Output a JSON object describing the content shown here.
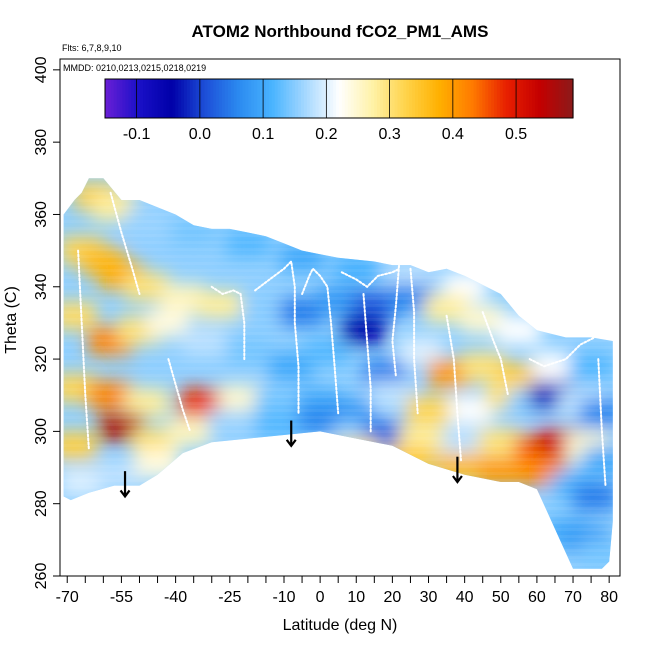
{
  "chart_data": {
    "type": "heatmap",
    "title": "ATOM2 Northbound fCO2_PM1_AMS",
    "subtitle_flights": "Flts: 6,7,8,9,10",
    "subtitle_dates": "MMDD: 0210,0213,0215,0218,0219",
    "xlabel": "Latitude (deg N)",
    "ylabel": "Theta (C)",
    "xlim": [
      -72,
      83
    ],
    "ylim": [
      260,
      403
    ],
    "x_ticks_labeled": [
      -70,
      -55,
      -40,
      -25,
      -10,
      0,
      10,
      20,
      30,
      40,
      50,
      60,
      70,
      80
    ],
    "x_ticks_minor": [
      -65,
      -60,
      -50,
      -45,
      -35,
      -30,
      -20,
      -15,
      -5,
      5,
      15,
      25,
      35,
      45,
      55,
      65,
      75
    ],
    "y_ticks": [
      260,
      280,
      300,
      320,
      340,
      360,
      380,
      400
    ],
    "colorbar": {
      "range": [
        -0.15,
        0.59
      ],
      "ticks": [
        -0.1,
        0.0,
        0.1,
        0.2,
        0.3,
        0.4,
        0.5
      ],
      "tick_labels": [
        "-0.1",
        "0.0",
        "0.1",
        "0.2",
        "0.3",
        "0.4",
        "0.5"
      ],
      "colors": [
        "#6a1fd6",
        "#1a10c8",
        "#0000a8",
        "#1d4fd8",
        "#2b8af0",
        "#49b4ff",
        "#a6d8ff",
        "#ffffff",
        "#fff2a8",
        "#ffd34a",
        "#ffb000",
        "#ff7a00",
        "#e82000",
        "#c40000",
        "#8c1a1a"
      ]
    },
    "domain_outline": [
      [
        -71,
        282
      ],
      [
        -69,
        281
      ],
      [
        -64,
        283
      ],
      [
        -57,
        285
      ],
      [
        -50,
        285
      ],
      [
        -45,
        288
      ],
      [
        -38,
        294
      ],
      [
        -30,
        297
      ],
      [
        -20,
        298
      ],
      [
        -10,
        299
      ],
      [
        0,
        300
      ],
      [
        10,
        298
      ],
      [
        20,
        296
      ],
      [
        30,
        291
      ],
      [
        40,
        288
      ],
      [
        50,
        286
      ],
      [
        55,
        286
      ],
      [
        60,
        284
      ],
      [
        65,
        273
      ],
      [
        70,
        262
      ],
      [
        72,
        262
      ],
      [
        78,
        262
      ],
      [
        80,
        264
      ],
      [
        81,
        275
      ],
      [
        81,
        325
      ],
      [
        75,
        326
      ],
      [
        68,
        326
      ],
      [
        60,
        328
      ],
      [
        55,
        332
      ],
      [
        50,
        338
      ],
      [
        40,
        343
      ],
      [
        35,
        345
      ],
      [
        30,
        344
      ],
      [
        25,
        346
      ],
      [
        20,
        346
      ],
      [
        15,
        347
      ],
      [
        5,
        348
      ],
      [
        0,
        349
      ],
      [
        -5,
        350
      ],
      [
        -10,
        352
      ],
      [
        -15,
        354
      ],
      [
        -20,
        355
      ],
      [
        -25,
        356
      ],
      [
        -30,
        356
      ],
      [
        -35,
        357
      ],
      [
        -40,
        360
      ],
      [
        -45,
        362
      ],
      [
        -50,
        364
      ],
      [
        -55,
        364
      ],
      [
        -60,
        370
      ],
      [
        -64,
        370
      ],
      [
        -66,
        366
      ],
      [
        -68,
        364
      ],
      [
        -71,
        360
      ]
    ],
    "cells": [
      {
        "lat": -62,
        "theta": 365,
        "value": 0.33
      },
      {
        "lat": -57,
        "theta": 362,
        "value": 0.28
      },
      {
        "lat": -48,
        "theta": 358,
        "value": 0.16
      },
      {
        "lat": -35,
        "theta": 355,
        "value": 0.14
      },
      {
        "lat": -20,
        "theta": 352,
        "value": 0.12
      },
      {
        "lat": -5,
        "theta": 348,
        "value": 0.1
      },
      {
        "lat": 10,
        "theta": 345,
        "value": 0.11
      },
      {
        "lat": 25,
        "theta": 343,
        "value": 0.18
      },
      {
        "lat": 40,
        "theta": 340,
        "value": 0.22
      },
      {
        "lat": -66,
        "theta": 350,
        "value": 0.32
      },
      {
        "lat": -60,
        "theta": 347,
        "value": 0.36
      },
      {
        "lat": -55,
        "theta": 343,
        "value": 0.38
      },
      {
        "lat": -48,
        "theta": 340,
        "value": 0.3
      },
      {
        "lat": -38,
        "theta": 337,
        "value": 0.26
      },
      {
        "lat": -28,
        "theta": 335,
        "value": 0.28
      },
      {
        "lat": -15,
        "theta": 333,
        "value": 0.15
      },
      {
        "lat": -5,
        "theta": 333,
        "value": 0.05
      },
      {
        "lat": 5,
        "theta": 336,
        "value": 0.08
      },
      {
        "lat": 15,
        "theta": 335,
        "value": 0.02
      },
      {
        "lat": 25,
        "theta": 337,
        "value": 0.06
      },
      {
        "lat": 35,
        "theta": 334,
        "value": 0.28
      },
      {
        "lat": 45,
        "theta": 331,
        "value": 0.25
      },
      {
        "lat": 55,
        "theta": 328,
        "value": 0.22
      },
      {
        "lat": -68,
        "theta": 332,
        "value": 0.31
      },
      {
        "lat": -58,
        "theta": 325,
        "value": 0.42
      },
      {
        "lat": -50,
        "theta": 328,
        "value": 0.3
      },
      {
        "lat": -42,
        "theta": 330,
        "value": 0.24
      },
      {
        "lat": -32,
        "theta": 325,
        "value": 0.18
      },
      {
        "lat": -20,
        "theta": 322,
        "value": 0.14
      },
      {
        "lat": -8,
        "theta": 318,
        "value": 0.1
      },
      {
        "lat": 2,
        "theta": 322,
        "value": 0.12
      },
      {
        "lat": 12,
        "theta": 328,
        "value": -0.05
      },
      {
        "lat": 18,
        "theta": 316,
        "value": 0.05
      },
      {
        "lat": 28,
        "theta": 322,
        "value": 0.2
      },
      {
        "lat": 36,
        "theta": 316,
        "value": 0.4
      },
      {
        "lat": 45,
        "theta": 318,
        "value": 0.3
      },
      {
        "lat": 55,
        "theta": 315,
        "value": 0.34
      },
      {
        "lat": 65,
        "theta": 318,
        "value": 0.22
      },
      {
        "lat": 75,
        "theta": 318,
        "value": 0.12
      },
      {
        "lat": -68,
        "theta": 312,
        "value": 0.32
      },
      {
        "lat": -58,
        "theta": 310,
        "value": 0.42
      },
      {
        "lat": -48,
        "theta": 308,
        "value": 0.28
      },
      {
        "lat": -33,
        "theta": 308,
        "value": 0.47
      },
      {
        "lat": -22,
        "theta": 309,
        "value": 0.25
      },
      {
        "lat": -12,
        "theta": 308,
        "value": 0.14
      },
      {
        "lat": 0,
        "theta": 308,
        "value": 0.1
      },
      {
        "lat": 10,
        "theta": 305,
        "value": 0.08
      },
      {
        "lat": 20,
        "theta": 310,
        "value": 0.18
      },
      {
        "lat": 30,
        "theta": 306,
        "value": 0.32
      },
      {
        "lat": 42,
        "theta": 306,
        "value": 0.22
      },
      {
        "lat": 52,
        "theta": 310,
        "value": 0.3
      },
      {
        "lat": 58,
        "theta": 308,
        "value": 0.15
      },
      {
        "lat": 64,
        "theta": 310,
        "value": -0.02
      },
      {
        "lat": 72,
        "theta": 308,
        "value": 0.18
      },
      {
        "lat": 78,
        "theta": 305,
        "value": 0.06
      },
      {
        "lat": -68,
        "theta": 296,
        "value": 0.33
      },
      {
        "lat": -55,
        "theta": 301,
        "value": 0.56
      },
      {
        "lat": -46,
        "theta": 297,
        "value": 0.3
      },
      {
        "lat": -36,
        "theta": 300,
        "value": 0.26
      },
      {
        "lat": -25,
        "theta": 302,
        "value": 0.16
      },
      {
        "lat": -12,
        "theta": 302,
        "value": 0.12
      },
      {
        "lat": 0,
        "theta": 303,
        "value": 0.06
      },
      {
        "lat": 10,
        "theta": 299,
        "value": 0.15
      },
      {
        "lat": 18,
        "theta": 299,
        "value": 0.03
      },
      {
        "lat": 28,
        "theta": 298,
        "value": 0.28
      },
      {
        "lat": 40,
        "theta": 297,
        "value": 0.18
      },
      {
        "lat": 50,
        "theta": 297,
        "value": 0.3
      },
      {
        "lat": 60,
        "theta": 295,
        "value": 0.45
      },
      {
        "lat": 66,
        "theta": 297,
        "value": 0.52
      },
      {
        "lat": 74,
        "theta": 296,
        "value": 0.25
      },
      {
        "lat": 79,
        "theta": 292,
        "value": 0.1
      },
      {
        "lat": -66,
        "theta": 286,
        "value": 0.2
      },
      {
        "lat": -56,
        "theta": 288,
        "value": 0.18
      },
      {
        "lat": -45,
        "theta": 291,
        "value": 0.24
      },
      {
        "lat": 10,
        "theta": 294,
        "value": 0.3
      },
      {
        "lat": 25,
        "theta": 292,
        "value": 0.34
      },
      {
        "lat": 38,
        "theta": 290,
        "value": 0.36
      },
      {
        "lat": 50,
        "theta": 289,
        "value": 0.4
      },
      {
        "lat": 62,
        "theta": 289,
        "value": 0.42
      },
      {
        "lat": 70,
        "theta": 285,
        "value": 0.12
      },
      {
        "lat": 76,
        "theta": 282,
        "value": 0.05
      },
      {
        "lat": 68,
        "theta": 272,
        "value": 0.1
      },
      {
        "lat": 74,
        "theta": 270,
        "value": 0.08
      },
      {
        "lat": 78,
        "theta": 266,
        "value": 0.14
      }
    ],
    "flight_tracks": [
      [
        [
          -58,
          366
        ],
        [
          -55,
          355
        ],
        [
          -52,
          345
        ],
        [
          -50,
          338
        ]
      ],
      [
        [
          -30,
          340
        ],
        [
          -27,
          338
        ],
        [
          -24,
          339
        ],
        [
          -22,
          338
        ],
        [
          -21,
          330
        ],
        [
          -21,
          320
        ]
      ],
      [
        [
          -18,
          339
        ],
        [
          -14,
          342
        ],
        [
          -10,
          345
        ],
        [
          -8,
          347
        ],
        [
          -7,
          340
        ],
        [
          -7,
          330
        ],
        [
          -6,
          318
        ],
        [
          -6,
          305
        ]
      ],
      [
        [
          -5,
          338
        ],
        [
          -3,
          343
        ],
        [
          -2,
          345
        ],
        [
          0,
          343
        ],
        [
          2,
          340
        ],
        [
          3,
          330
        ],
        [
          4,
          318
        ],
        [
          5,
          305
        ]
      ],
      [
        [
          6,
          344
        ],
        [
          10,
          342
        ],
        [
          13,
          340
        ],
        [
          16,
          343
        ],
        [
          20,
          344
        ],
        [
          22,
          345
        ]
      ],
      [
        [
          12,
          338
        ],
        [
          13,
          325
        ],
        [
          14,
          312
        ],
        [
          14,
          300
        ]
      ],
      [
        [
          22,
          348
        ],
        [
          21,
          335
        ],
        [
          20,
          325
        ],
        [
          21,
          315
        ]
      ],
      [
        [
          25,
          345
        ],
        [
          26,
          333
        ],
        [
          26,
          320
        ],
        [
          27,
          305
        ]
      ],
      [
        [
          35,
          332
        ],
        [
          37,
          320
        ],
        [
          38,
          305
        ],
        [
          39,
          292
        ]
      ],
      [
        [
          45,
          333
        ],
        [
          48,
          325
        ],
        [
          50,
          320
        ],
        [
          52,
          310
        ]
      ],
      [
        [
          58,
          320
        ],
        [
          62,
          318
        ],
        [
          68,
          320
        ],
        [
          72,
          324
        ],
        [
          76,
          326
        ]
      ],
      [
        [
          77,
          320
        ],
        [
          78,
          300
        ],
        [
          79,
          285
        ]
      ],
      [
        [
          -67,
          350
        ],
        [
          -66,
          330
        ],
        [
          -65,
          310
        ],
        [
          -64,
          295
        ]
      ],
      [
        [
          -42,
          320
        ],
        [
          -40,
          313
        ],
        [
          -38,
          306
        ],
        [
          -36,
          300
        ]
      ]
    ],
    "arrows": [
      {
        "lat": -54,
        "theta_from": 289,
        "theta_to": 282
      },
      {
        "lat": -8,
        "theta_from": 303,
        "theta_to": 296
      },
      {
        "lat": 38,
        "theta_from": 293,
        "theta_to": 286
      }
    ]
  }
}
